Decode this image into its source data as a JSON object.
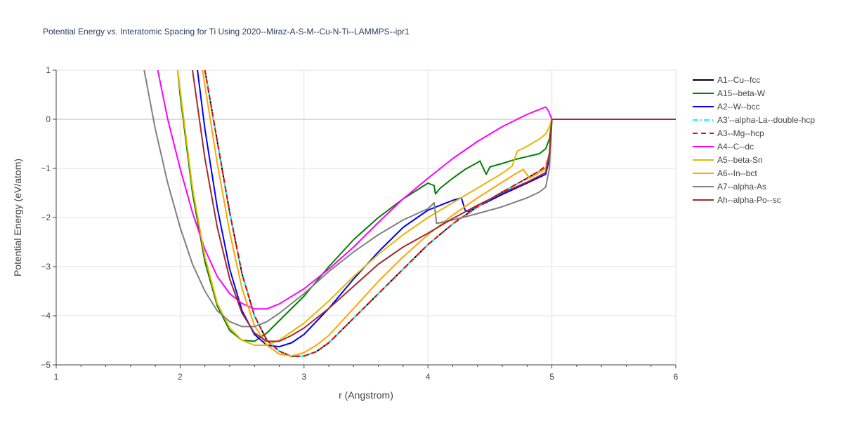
{
  "chart_data": {
    "type": "line",
    "title": "Potential Energy vs. Interatomic Spacing for Ti Using 2020--Miraz-A-S-M--Cu-N-Ti--LAMMPS--ipr1",
    "xlabel": "r (Angstrom)",
    "ylabel": "Potential Energy (eV/atom)",
    "xlim": [
      1,
      6
    ],
    "ylim": [
      -5,
      1
    ],
    "xticks": [
      1,
      2,
      3,
      4,
      5,
      6
    ],
    "yticks": [
      1,
      0,
      -1,
      -2,
      -3,
      -4,
      -5
    ],
    "xtick_labels": [
      "1",
      "2",
      "3",
      "4",
      "5",
      "6"
    ],
    "ytick_labels": [
      "1",
      "0",
      "−1",
      "−2",
      "−3",
      "−4",
      "−5"
    ],
    "grid": true,
    "legend_position": "right",
    "series": [
      {
        "name": "A1--Cu--fcc",
        "color": "#000000",
        "dash": "solid",
        "points": [
          [
            2.2,
            1.0
          ],
          [
            2.3,
            -0.45
          ],
          [
            2.4,
            -1.9
          ],
          [
            2.5,
            -3.15
          ],
          [
            2.6,
            -4.0
          ],
          [
            2.7,
            -4.5
          ],
          [
            2.8,
            -4.72
          ],
          [
            2.9,
            -4.83
          ],
          [
            3.0,
            -4.82
          ],
          [
            3.1,
            -4.73
          ],
          [
            3.2,
            -4.55
          ],
          [
            3.4,
            -4.05
          ],
          [
            3.6,
            -3.55
          ],
          [
            3.8,
            -3.05
          ],
          [
            4.0,
            -2.55
          ],
          [
            4.2,
            -2.13
          ],
          [
            4.4,
            -1.78
          ],
          [
            4.6,
            -1.48
          ],
          [
            4.8,
            -1.2
          ],
          [
            4.9,
            -1.05
          ],
          [
            4.95,
            -1.0
          ],
          [
            4.98,
            -0.7
          ],
          [
            5.0,
            0.0
          ],
          [
            6.0,
            0.0
          ]
        ]
      },
      {
        "name": "A15--beta-W",
        "color": "#008000",
        "dash": "solid",
        "points": [
          [
            1.98,
            1.0
          ],
          [
            2.0,
            0.5
          ],
          [
            2.1,
            -1.5
          ],
          [
            2.2,
            -2.9
          ],
          [
            2.3,
            -3.8
          ],
          [
            2.4,
            -4.3
          ],
          [
            2.5,
            -4.5
          ],
          [
            2.6,
            -4.52
          ],
          [
            2.7,
            -4.35
          ],
          [
            2.8,
            -4.1
          ],
          [
            3.0,
            -3.6
          ],
          [
            3.2,
            -3.0
          ],
          [
            3.4,
            -2.45
          ],
          [
            3.6,
            -2.0
          ],
          [
            3.8,
            -1.62
          ],
          [
            4.0,
            -1.3
          ],
          [
            4.05,
            -1.35
          ],
          [
            4.06,
            -1.52
          ],
          [
            4.1,
            -1.4
          ],
          [
            4.2,
            -1.2
          ],
          [
            4.3,
            -1.02
          ],
          [
            4.4,
            -0.88
          ],
          [
            4.42,
            -0.85
          ],
          [
            4.47,
            -1.12
          ],
          [
            4.5,
            -0.97
          ],
          [
            4.6,
            -0.9
          ],
          [
            4.7,
            -0.82
          ],
          [
            4.8,
            -0.76
          ],
          [
            4.9,
            -0.7
          ],
          [
            4.95,
            -0.6
          ],
          [
            4.98,
            -0.4
          ],
          [
            5.0,
            0.0
          ],
          [
            6.0,
            0.0
          ]
        ]
      },
      {
        "name": "A2--W--bcc",
        "color": "#0000ff",
        "dash": "solid",
        "points": [
          [
            2.14,
            1.0
          ],
          [
            2.2,
            -0.2
          ],
          [
            2.3,
            -1.8
          ],
          [
            2.4,
            -3.05
          ],
          [
            2.5,
            -3.9
          ],
          [
            2.6,
            -4.38
          ],
          [
            2.7,
            -4.6
          ],
          [
            2.8,
            -4.63
          ],
          [
            2.9,
            -4.55
          ],
          [
            3.0,
            -4.38
          ],
          [
            3.2,
            -3.85
          ],
          [
            3.4,
            -3.25
          ],
          [
            3.6,
            -2.7
          ],
          [
            3.8,
            -2.2
          ],
          [
            4.0,
            -1.85
          ],
          [
            4.2,
            -1.65
          ],
          [
            4.27,
            -1.6
          ],
          [
            4.3,
            -1.85
          ],
          [
            4.33,
            -1.88
          ],
          [
            4.4,
            -1.78
          ],
          [
            4.6,
            -1.53
          ],
          [
            4.8,
            -1.3
          ],
          [
            4.9,
            -1.18
          ],
          [
            4.95,
            -1.12
          ],
          [
            4.98,
            -0.8
          ],
          [
            5.0,
            0.0
          ],
          [
            6.0,
            0.0
          ]
        ]
      },
      {
        "name": "A3'--alpha-La--double-hcp",
        "color": "#00ffff",
        "dash": "dashdot",
        "points": [
          [
            2.2,
            1.0
          ],
          [
            2.3,
            -0.45
          ],
          [
            2.4,
            -1.9
          ],
          [
            2.5,
            -3.15
          ],
          [
            2.6,
            -4.0
          ],
          [
            2.7,
            -4.5
          ],
          [
            2.8,
            -4.72
          ],
          [
            2.9,
            -4.83
          ],
          [
            3.0,
            -4.82
          ],
          [
            3.1,
            -4.73
          ],
          [
            3.2,
            -4.55
          ],
          [
            3.4,
            -4.05
          ],
          [
            3.6,
            -3.55
          ],
          [
            3.8,
            -3.05
          ],
          [
            4.0,
            -2.55
          ],
          [
            4.2,
            -2.13
          ],
          [
            4.4,
            -1.78
          ],
          [
            4.6,
            -1.48
          ],
          [
            4.8,
            -1.2
          ],
          [
            4.9,
            -1.05
          ],
          [
            4.95,
            -1.0
          ],
          [
            4.98,
            -0.7
          ],
          [
            5.0,
            0.0
          ],
          [
            6.0,
            0.0
          ]
        ]
      },
      {
        "name": "A3--Mg--hcp",
        "color": "#ff0000",
        "dash": "dash",
        "points": [
          [
            2.2,
            1.0
          ],
          [
            2.3,
            -0.45
          ],
          [
            2.4,
            -1.9
          ],
          [
            2.5,
            -3.15
          ],
          [
            2.6,
            -4.0
          ],
          [
            2.7,
            -4.5
          ],
          [
            2.8,
            -4.72
          ],
          [
            2.9,
            -4.83
          ],
          [
            3.0,
            -4.82
          ],
          [
            3.1,
            -4.73
          ],
          [
            3.2,
            -4.55
          ],
          [
            3.4,
            -4.05
          ],
          [
            3.6,
            -3.55
          ],
          [
            3.8,
            -3.05
          ],
          [
            4.0,
            -2.55
          ],
          [
            4.2,
            -2.13
          ],
          [
            4.4,
            -1.78
          ],
          [
            4.6,
            -1.48
          ],
          [
            4.8,
            -1.2
          ],
          [
            4.9,
            -1.05
          ],
          [
            4.95,
            -0.95
          ],
          [
            4.98,
            -0.7
          ],
          [
            5.0,
            0.0
          ],
          [
            6.0,
            0.0
          ]
        ]
      },
      {
        "name": "A4--C--dc",
        "color": "#ff00ff",
        "dash": "solid",
        "points": [
          [
            1.82,
            1.0
          ],
          [
            1.9,
            0.0
          ],
          [
            2.0,
            -1.0
          ],
          [
            2.1,
            -1.9
          ],
          [
            2.2,
            -2.65
          ],
          [
            2.3,
            -3.2
          ],
          [
            2.4,
            -3.55
          ],
          [
            2.5,
            -3.75
          ],
          [
            2.6,
            -3.86
          ],
          [
            2.7,
            -3.86
          ],
          [
            2.8,
            -3.76
          ],
          [
            3.0,
            -3.45
          ],
          [
            3.2,
            -3.05
          ],
          [
            3.4,
            -2.6
          ],
          [
            3.6,
            -2.1
          ],
          [
            3.8,
            -1.62
          ],
          [
            4.0,
            -1.2
          ],
          [
            4.2,
            -0.8
          ],
          [
            4.4,
            -0.45
          ],
          [
            4.6,
            -0.15
          ],
          [
            4.8,
            0.1
          ],
          [
            4.9,
            0.2
          ],
          [
            4.95,
            0.25
          ],
          [
            4.97,
            0.18
          ],
          [
            5.0,
            0.0
          ],
          [
            6.0,
            0.0
          ]
        ]
      },
      {
        "name": "A5--beta-Sn",
        "color": "#e6b800",
        "dash": "solid",
        "points": [
          [
            1.98,
            1.0
          ],
          [
            2.0,
            0.6
          ],
          [
            2.1,
            -1.4
          ],
          [
            2.2,
            -2.8
          ],
          [
            2.3,
            -3.75
          ],
          [
            2.4,
            -4.25
          ],
          [
            2.5,
            -4.5
          ],
          [
            2.6,
            -4.6
          ],
          [
            2.7,
            -4.6
          ],
          [
            2.8,
            -4.5
          ],
          [
            3.0,
            -4.15
          ],
          [
            3.2,
            -3.7
          ],
          [
            3.4,
            -3.2
          ],
          [
            3.6,
            -2.75
          ],
          [
            3.8,
            -2.35
          ],
          [
            4.0,
            -2.0
          ],
          [
            4.2,
            -1.7
          ],
          [
            4.4,
            -1.4
          ],
          [
            4.6,
            -1.1
          ],
          [
            4.68,
            -0.95
          ],
          [
            4.72,
            -0.65
          ],
          [
            4.8,
            -0.55
          ],
          [
            4.9,
            -0.4
          ],
          [
            4.95,
            -0.3
          ],
          [
            4.98,
            -0.15
          ],
          [
            5.0,
            0.0
          ],
          [
            6.0,
            0.0
          ]
        ]
      },
      {
        "name": "A6--In--bct",
        "color": "#ffa500",
        "dash": "solid",
        "points": [
          [
            2.18,
            1.0
          ],
          [
            2.3,
            -0.9
          ],
          [
            2.4,
            -2.3
          ],
          [
            2.5,
            -3.45
          ],
          [
            2.6,
            -4.2
          ],
          [
            2.7,
            -4.6
          ],
          [
            2.8,
            -4.78
          ],
          [
            2.9,
            -4.82
          ],
          [
            3.0,
            -4.75
          ],
          [
            3.1,
            -4.6
          ],
          [
            3.2,
            -4.4
          ],
          [
            3.4,
            -3.85
          ],
          [
            3.6,
            -3.3
          ],
          [
            3.8,
            -2.8
          ],
          [
            4.0,
            -2.35
          ],
          [
            4.2,
            -1.95
          ],
          [
            4.4,
            -1.6
          ],
          [
            4.6,
            -1.28
          ],
          [
            4.7,
            -1.12
          ],
          [
            4.77,
            -1.02
          ],
          [
            4.82,
            -1.2
          ],
          [
            4.9,
            -1.08
          ],
          [
            4.95,
            -1.0
          ],
          [
            4.98,
            -0.7
          ],
          [
            5.0,
            0.0
          ],
          [
            6.0,
            0.0
          ]
        ]
      },
      {
        "name": "A7--alpha-As",
        "color": "#808080",
        "dash": "solid",
        "points": [
          [
            1.71,
            1.0
          ],
          [
            1.8,
            -0.2
          ],
          [
            1.9,
            -1.3
          ],
          [
            2.0,
            -2.2
          ],
          [
            2.1,
            -2.95
          ],
          [
            2.2,
            -3.5
          ],
          [
            2.3,
            -3.9
          ],
          [
            2.4,
            -4.12
          ],
          [
            2.5,
            -4.22
          ],
          [
            2.6,
            -4.22
          ],
          [
            2.7,
            -4.12
          ],
          [
            2.8,
            -3.95
          ],
          [
            3.0,
            -3.55
          ],
          [
            3.2,
            -3.1
          ],
          [
            3.4,
            -2.7
          ],
          [
            3.6,
            -2.35
          ],
          [
            3.8,
            -2.05
          ],
          [
            4.0,
            -1.82
          ],
          [
            4.05,
            -1.7
          ],
          [
            4.07,
            -2.12
          ],
          [
            4.2,
            -2.05
          ],
          [
            4.4,
            -1.92
          ],
          [
            4.6,
            -1.78
          ],
          [
            4.8,
            -1.6
          ],
          [
            4.9,
            -1.48
          ],
          [
            4.95,
            -1.38
          ],
          [
            4.98,
            -1.0
          ],
          [
            5.0,
            0.0
          ],
          [
            6.0,
            0.0
          ]
        ]
      },
      {
        "name": "Ah--alpha-Po--sc",
        "color": "#a52a2a",
        "dash": "solid",
        "points": [
          [
            2.1,
            1.0
          ],
          [
            2.2,
            -0.8
          ],
          [
            2.3,
            -2.2
          ],
          [
            2.4,
            -3.25
          ],
          [
            2.5,
            -3.95
          ],
          [
            2.6,
            -4.35
          ],
          [
            2.7,
            -4.52
          ],
          [
            2.8,
            -4.52
          ],
          [
            2.9,
            -4.4
          ],
          [
            3.0,
            -4.25
          ],
          [
            3.2,
            -3.85
          ],
          [
            3.4,
            -3.4
          ],
          [
            3.6,
            -2.95
          ],
          [
            3.8,
            -2.6
          ],
          [
            4.0,
            -2.32
          ],
          [
            4.2,
            -2.02
          ],
          [
            4.4,
            -1.75
          ],
          [
            4.6,
            -1.5
          ],
          [
            4.8,
            -1.28
          ],
          [
            4.9,
            -1.15
          ],
          [
            4.95,
            -1.08
          ],
          [
            4.98,
            -0.7
          ],
          [
            5.0,
            0.0
          ],
          [
            6.0,
            0.0
          ]
        ]
      }
    ]
  }
}
